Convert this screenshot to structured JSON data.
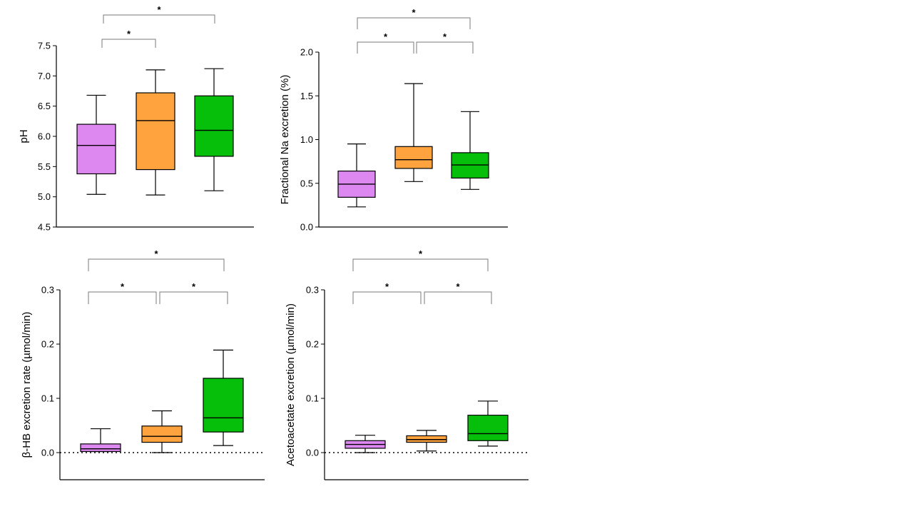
{
  "colors": {
    "group_fills": [
      "#dd88f0",
      "#ffa33f",
      "#05bf0a"
    ],
    "axis": "#000000",
    "bracket": "#7a7a7a",
    "background": "#ffffff"
  },
  "chart_data": [
    {
      "type": "box",
      "ylabel": "pH",
      "ylim": [
        4.5,
        7.5
      ],
      "ticks": [
        "4.5",
        "5.0",
        "5.5",
        "6.0",
        "6.5",
        "7.0",
        "7.5"
      ],
      "reference_line": null,
      "groups": [
        {
          "min": 5.04,
          "q1": 5.38,
          "median": 5.85,
          "q3": 6.2,
          "max": 6.68
        },
        {
          "min": 5.03,
          "q1": 5.45,
          "median": 6.26,
          "q3": 6.72,
          "max": 7.1
        },
        {
          "min": 5.1,
          "q1": 5.67,
          "median": 6.1,
          "q3": 6.67,
          "max": 7.12
        }
      ],
      "significance": [
        {
          "pair": [
            0,
            1
          ],
          "label": "*"
        },
        {
          "pair": [
            0,
            2
          ],
          "label": "*"
        }
      ]
    },
    {
      "type": "box",
      "ylabel": "Fractional Na excretion (%)",
      "ylim": [
        0.0,
        2.0
      ],
      "ticks": [
        "0.0",
        "0.5",
        "1.0",
        "1.5",
        "2.0"
      ],
      "reference_line": null,
      "groups": [
        {
          "min": 0.23,
          "q1": 0.34,
          "median": 0.49,
          "q3": 0.64,
          "max": 0.95
        },
        {
          "min": 0.52,
          "q1": 0.67,
          "median": 0.77,
          "q3": 0.92,
          "max": 1.64
        },
        {
          "min": 0.43,
          "q1": 0.56,
          "median": 0.71,
          "q3": 0.85,
          "max": 1.32
        }
      ],
      "significance": [
        {
          "pair": [
            0,
            1
          ],
          "label": "*"
        },
        {
          "pair": [
            1,
            2
          ],
          "label": "*"
        },
        {
          "pair": [
            0,
            2
          ],
          "label": "*"
        }
      ]
    },
    {
      "type": "box",
      "ylabel": "β-HB excretion rate (µmol/min)",
      "ylim": [
        -0.05,
        0.3
      ],
      "ticks": [
        "0.0",
        "0.1",
        "0.2",
        "0.3"
      ],
      "reference_line": 0,
      "groups": [
        {
          "min": 0.002,
          "q1": 0.002,
          "median": 0.007,
          "q3": 0.016,
          "max": 0.044
        },
        {
          "min": 0.0,
          "q1": 0.019,
          "median": 0.03,
          "q3": 0.049,
          "max": 0.077
        },
        {
          "min": 0.013,
          "q1": 0.038,
          "median": 0.064,
          "q3": 0.137,
          "max": 0.189
        }
      ],
      "significance": [
        {
          "pair": [
            0,
            1
          ],
          "label": "*"
        },
        {
          "pair": [
            1,
            2
          ],
          "label": "*"
        },
        {
          "pair": [
            0,
            2
          ],
          "label": "*"
        }
      ]
    },
    {
      "type": "box",
      "ylabel": "Acetoacetate excretion (µmol/min)",
      "ylim": [
        -0.05,
        0.3
      ],
      "ticks": [
        "0.0",
        "0.1",
        "0.2",
        "0.3"
      ],
      "reference_line": 0,
      "groups": [
        {
          "min": 0.0,
          "q1": 0.008,
          "median": 0.015,
          "q3": 0.022,
          "max": 0.032
        },
        {
          "min": 0.003,
          "q1": 0.019,
          "median": 0.024,
          "q3": 0.031,
          "max": 0.041
        },
        {
          "min": 0.012,
          "q1": 0.022,
          "median": 0.035,
          "q3": 0.069,
          "max": 0.095
        }
      ],
      "significance": [
        {
          "pair": [
            0,
            1
          ],
          "label": "*"
        },
        {
          "pair": [
            1,
            2
          ],
          "label": "*"
        },
        {
          "pair": [
            0,
            2
          ],
          "label": "*"
        }
      ]
    }
  ]
}
